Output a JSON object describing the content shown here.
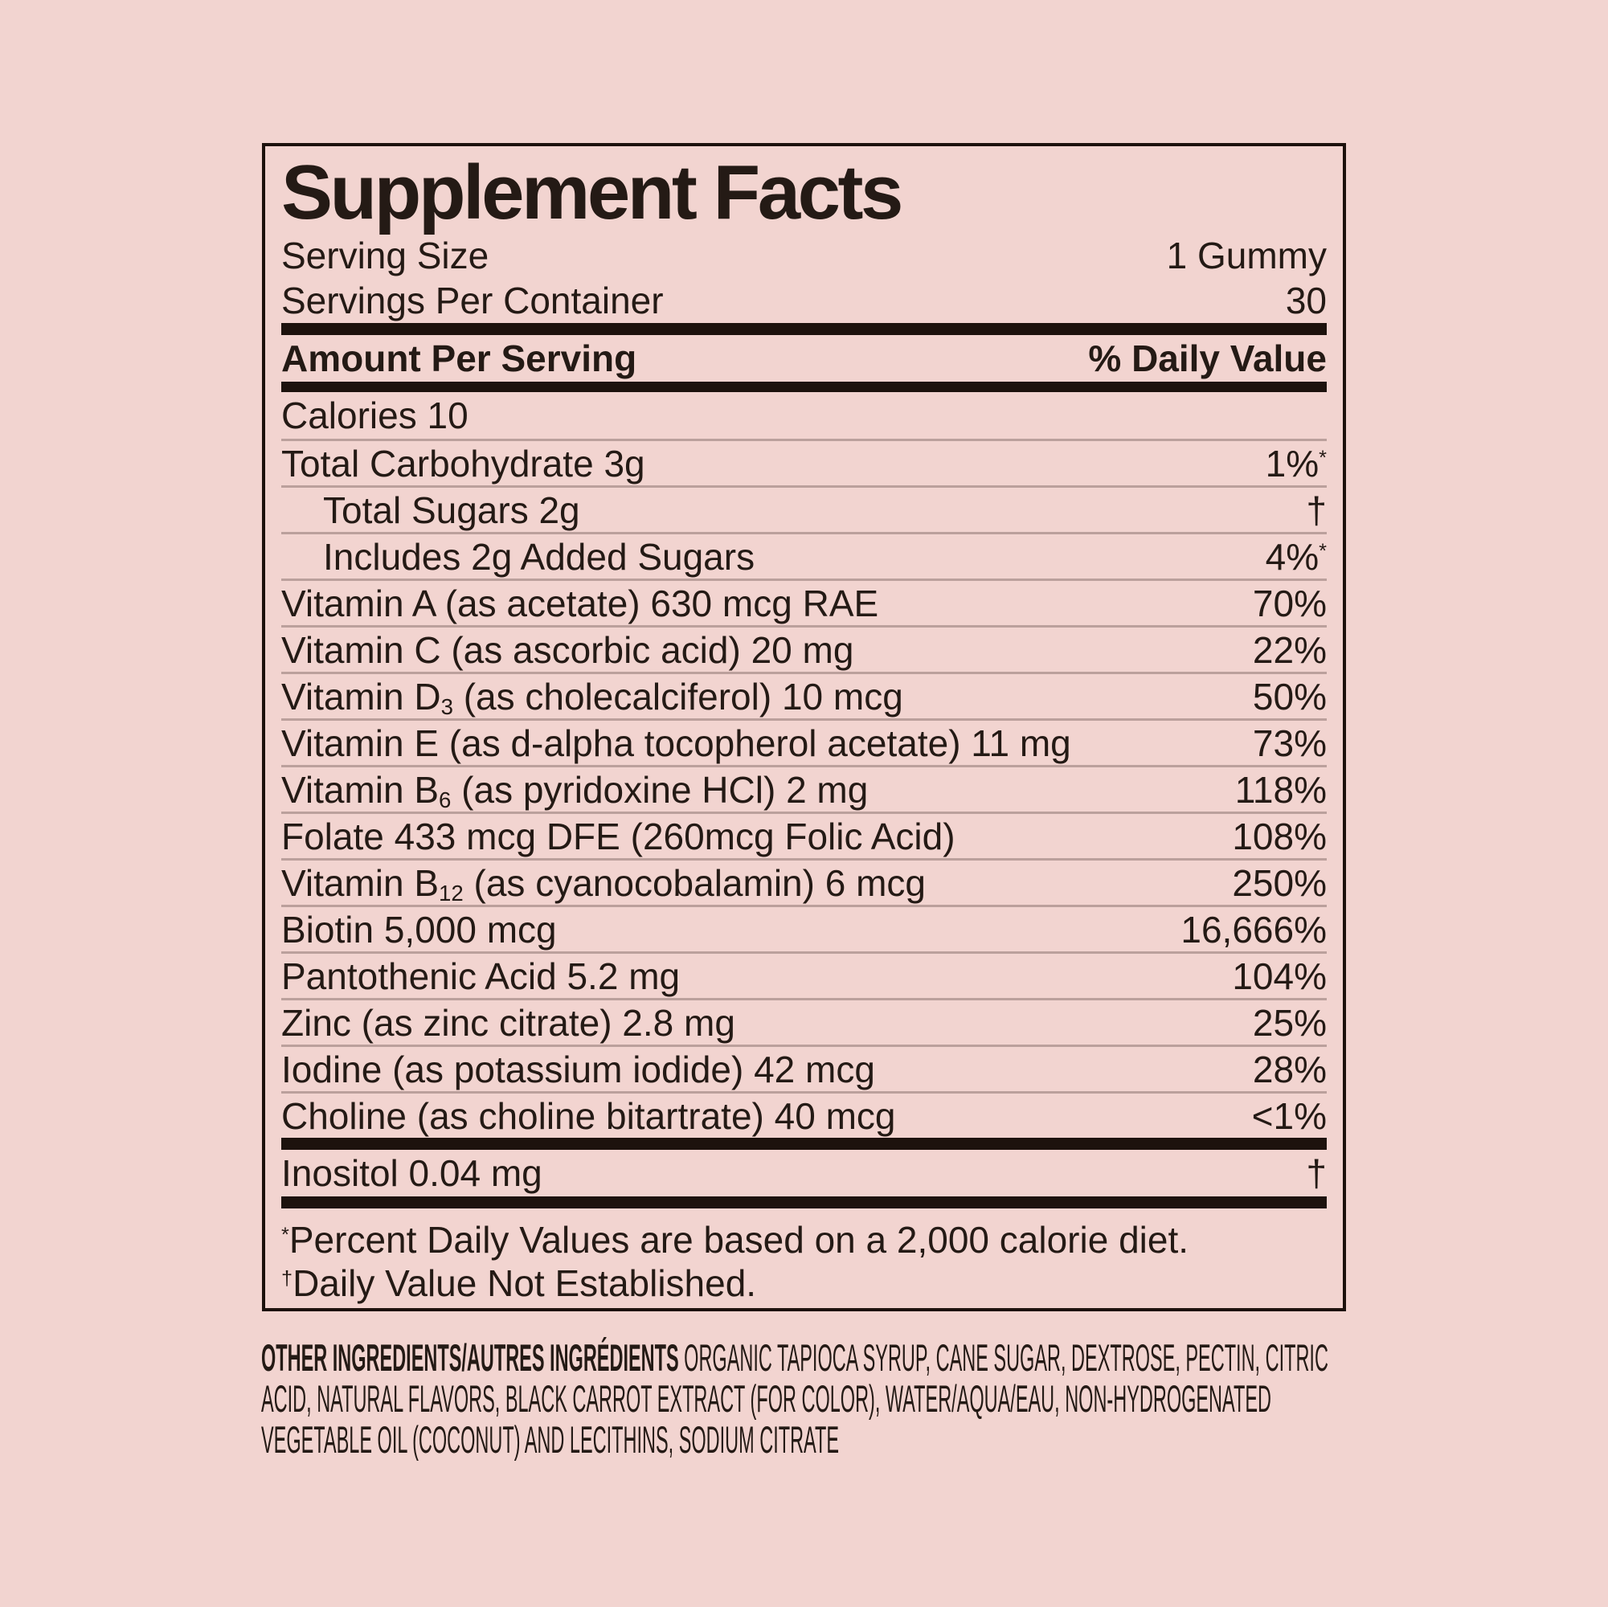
{
  "colors": {
    "background": "#f2d4d0",
    "text": "#241a15",
    "bar": "#1d120d",
    "hairline": "#bba09c"
  },
  "panel": {
    "title": "Supplement Facts",
    "serving_size_label": "Serving Size",
    "serving_size_value": "1 Gummy",
    "servings_per_container_label": "Servings Per Container",
    "servings_per_container_value": "30",
    "amount_per_serving_label": "Amount Per Serving",
    "daily_value_label": "% Daily Value",
    "rows": [
      {
        "name": "Calories 10",
        "value": ""
      },
      {
        "name": "Total Carbohydrate 3g",
        "value": "1%",
        "value_sup": "*"
      },
      {
        "name": "Total Sugars 2g",
        "value": "†",
        "indent": true
      },
      {
        "name": "Includes 2g Added Sugars",
        "value": "4%",
        "value_sup": "*",
        "indent": true
      },
      {
        "name": "Vitamin A (as acetate) 630 mcg RAE",
        "value": "70%"
      },
      {
        "name": "Vitamin C (as ascorbic acid) 20 mg",
        "value": "22%"
      },
      {
        "parts": [
          {
            "t": "Vitamin D"
          },
          {
            "t": "3",
            "sub": true
          },
          {
            "t": " (as cholecalciferol) 10 mcg"
          }
        ],
        "value": "50%"
      },
      {
        "name": "Vitamin E (as d-alpha tocopherol acetate) 11 mg",
        "value": "73%"
      },
      {
        "parts": [
          {
            "t": "Vitamin B"
          },
          {
            "t": "6",
            "sub": true
          },
          {
            "t": " (as pyridoxine HCl) 2 mg"
          }
        ],
        "value": "118%"
      },
      {
        "name": "Folate 433 mcg DFE (260mcg Folic Acid)",
        "value": "108%"
      },
      {
        "parts": [
          {
            "t": "Vitamin B"
          },
          {
            "t": "12",
            "sub": true
          },
          {
            "t": " (as cyanocobalamin) 6 mcg"
          }
        ],
        "value": "250%"
      },
      {
        "name": "Biotin 5,000 mcg",
        "value": "16,666%"
      },
      {
        "name": "Pantothenic Acid 5.2 mg",
        "value": "104%"
      },
      {
        "name": "Zinc (as zinc citrate) 2.8 mg",
        "value": "25%"
      },
      {
        "name": "Iodine (as potassium iodide) 42 mcg",
        "value": "28%"
      },
      {
        "name": "Choline (as choline bitartrate) 40 mcg",
        "value": "<1%"
      }
    ],
    "inositol_row": {
      "name": "Inositol 0.04 mg",
      "value": "†"
    },
    "footnotes": [
      {
        "sup": "*",
        "text": "Percent Daily Values are based on a 2,000 calorie diet."
      },
      {
        "sup": "†",
        "text": "Daily Value Not Established."
      }
    ]
  },
  "other_ingredients": {
    "label": "OTHER INGREDIENTS/AUTRES INGRÉDIENTS ",
    "lines": [
      "ORGANIC TAPIOCA SYRUP, CANE SUGAR, DEXTROSE, PECTIN, CITRIC",
      "ACID, NATURAL FLAVORS, BLACK CARROT EXTRACT (FOR COLOR), WATER/AQUA/EAU, NON-HYDROGENATED",
      "VEGETABLE OIL (COCONUT) AND LECITHINS, SODIUM CITRATE"
    ]
  }
}
